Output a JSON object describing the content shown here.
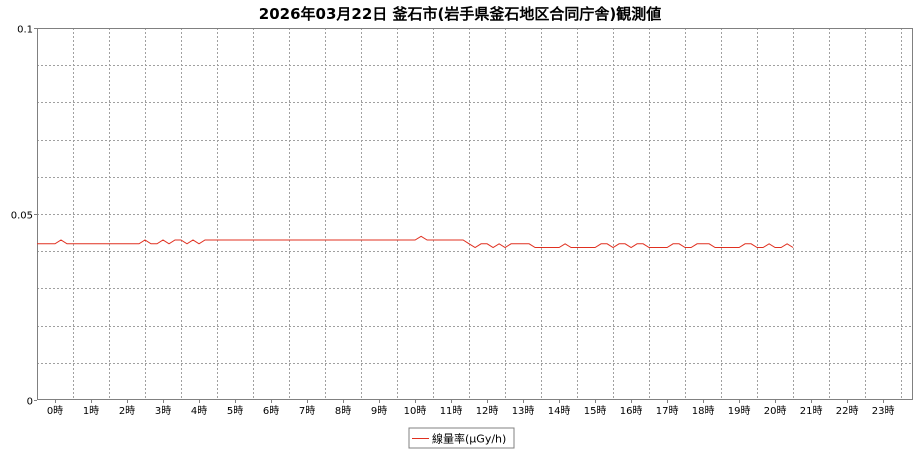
{
  "chart_data": {
    "type": "line",
    "title": "2026年03月22日 釜石市(岩手県釜石地区合同庁舎)観測値",
    "xlabel": "",
    "ylabel": "",
    "ylim": [
      0,
      0.1
    ],
    "y_ticks": [
      "0",
      "0.05",
      "0.1"
    ],
    "x_range_hours": [
      -0.5,
      23.83
    ],
    "x_ticks": [
      "0時",
      "1時",
      "2時",
      "3時",
      "4時",
      "5時",
      "6時",
      "7時",
      "8時",
      "9時",
      "10時",
      "11時",
      "12時",
      "13時",
      "14時",
      "15時",
      "16時",
      "17時",
      "18時",
      "19時",
      "20時",
      "21時",
      "22時",
      "23時"
    ],
    "grid": true,
    "legend_position": "bottom-center",
    "series": [
      {
        "name": "線量率(μGy/h)",
        "color": "#e03020",
        "sample_interval_minutes": 10,
        "values": [
          0.042,
          0.042,
          0.042,
          0.042,
          0.043,
          0.042,
          0.042,
          0.042,
          0.042,
          0.042,
          0.042,
          0.042,
          0.042,
          0.042,
          0.042,
          0.042,
          0.042,
          0.042,
          0.043,
          0.042,
          0.042,
          0.043,
          0.042,
          0.043,
          0.043,
          0.042,
          0.043,
          0.042,
          0.043,
          0.043,
          0.043,
          0.043,
          0.043,
          0.043,
          0.043,
          0.043,
          0.043,
          0.043,
          0.043,
          0.043,
          0.043,
          0.043,
          0.043,
          0.043,
          0.043,
          0.043,
          0.043,
          0.043,
          0.043,
          0.043,
          0.043,
          0.043,
          0.043,
          0.043,
          0.043,
          0.043,
          0.043,
          0.043,
          0.043,
          0.043,
          0.043,
          0.043,
          0.043,
          0.043,
          0.044,
          0.043,
          0.043,
          0.043,
          0.043,
          0.043,
          0.043,
          0.043,
          0.042,
          0.041,
          0.042,
          0.042,
          0.041,
          0.042,
          0.041,
          0.042,
          0.042,
          0.042,
          0.042,
          0.041,
          0.041,
          0.041,
          0.041,
          0.041,
          0.042,
          0.041,
          0.041,
          0.041,
          0.041,
          0.041,
          0.042,
          0.042,
          0.041,
          0.042,
          0.042,
          0.041,
          0.042,
          0.042,
          0.041,
          0.041,
          0.041,
          0.041,
          0.042,
          0.042,
          0.041,
          0.041,
          0.042,
          0.042,
          0.042,
          0.041,
          0.041,
          0.041,
          0.041,
          0.041,
          0.042,
          0.042,
          0.041,
          0.041,
          0.042,
          0.041,
          0.041,
          0.042,
          0.041
        ]
      }
    ]
  }
}
